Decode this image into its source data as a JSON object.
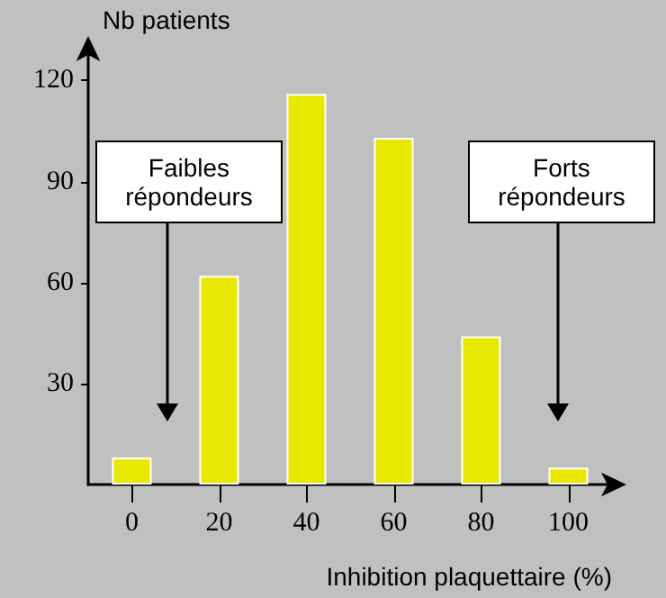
{
  "chart_data": {
    "type": "bar",
    "ylabel": "Nb patients",
    "xlabel": "Inhibition plaquettaire (%)",
    "categories": [
      "0",
      "20",
      "40",
      "60",
      "80",
      "100"
    ],
    "values": [
      8,
      62,
      116,
      103,
      44,
      5
    ],
    "color": "#e8e800",
    "ylim": [
      0,
      130
    ],
    "yticks": [
      30,
      60,
      90,
      120
    ],
    "grid": false,
    "annotations": [
      "Faibles\nrépondeurs",
      "Forts\nrépondeurs"
    ]
  }
}
